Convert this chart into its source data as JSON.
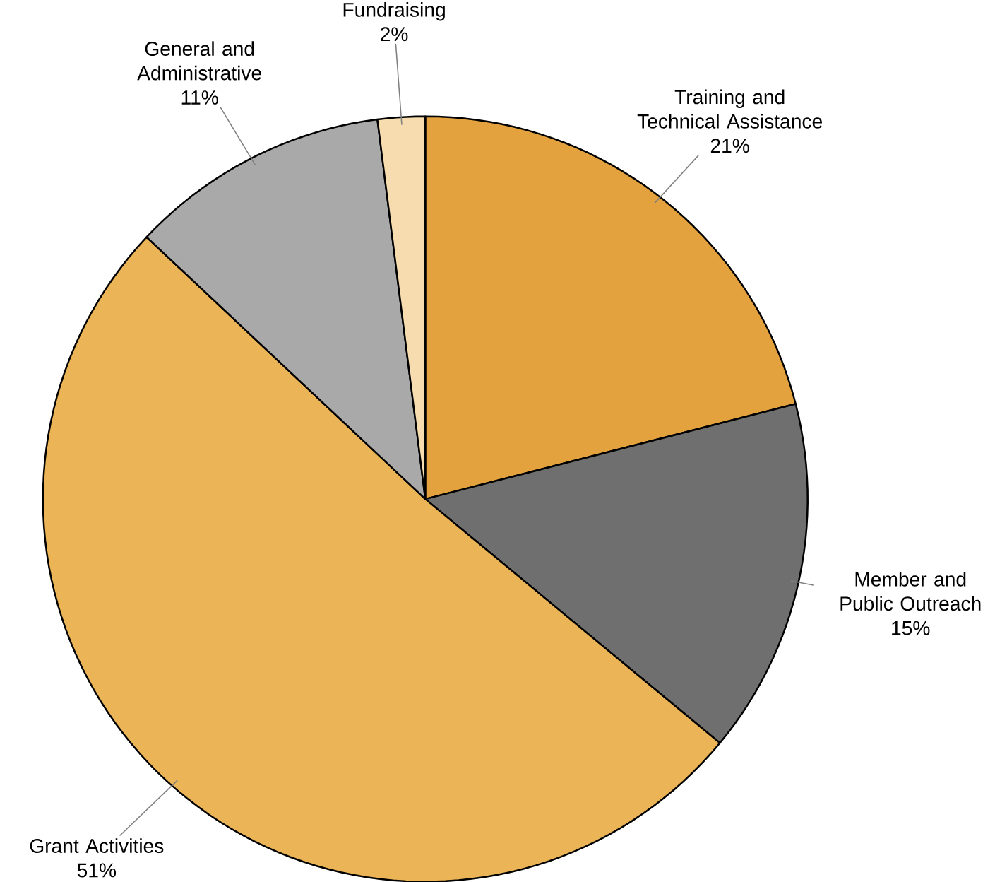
{
  "chart_data": {
    "type": "pie",
    "categories": [
      "Training and Technical Assistance",
      "Member and Public Outreach",
      "Grant Activities",
      "General and Administrative",
      "Fundraising"
    ],
    "values": [
      21,
      15,
      51,
      11,
      2
    ],
    "colors": [
      "#e3a23e",
      "#6f6f6f",
      "#ebb456",
      "#a9a9aa",
      "#f6dcae"
    ],
    "data_labels": true,
    "value_labels": [
      "21%",
      "15%",
      "51%",
      "11%",
      "2%"
    ]
  }
}
